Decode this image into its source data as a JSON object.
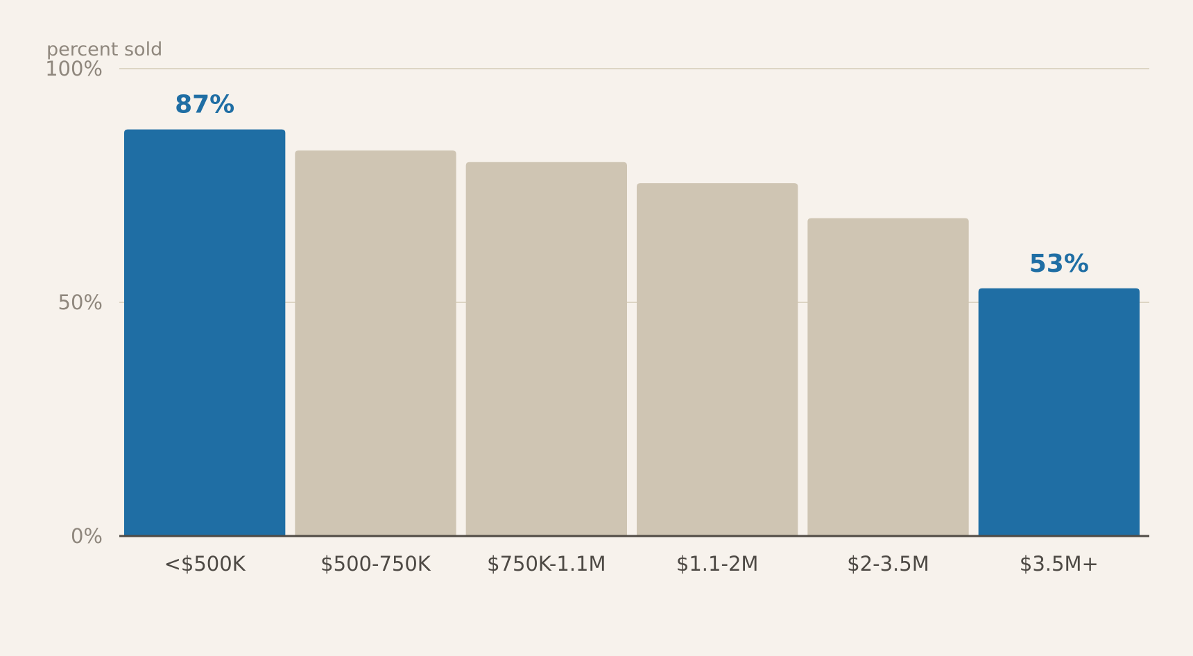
{
  "chart_data": {
    "type": "bar",
    "ylabel": "percent sold",
    "xlabel": "",
    "title": "",
    "ylim": [
      0,
      100
    ],
    "yticks": [
      {
        "value": 0,
        "label": "0%"
      },
      {
        "value": 50,
        "label": "50%"
      },
      {
        "value": 100,
        "label": "100%"
      }
    ],
    "categories": [
      "<$500K",
      "$500-750K",
      "$750K-1.1M",
      "$1.1-2M",
      "$2-3.5M",
      "$3.5M+"
    ],
    "values": [
      87,
      82.5,
      80,
      75.5,
      68,
      53
    ],
    "highlighted": [
      0,
      5
    ],
    "data_labels": [
      {
        "index": 0,
        "text": "87%"
      },
      {
        "index": 5,
        "text": "53%"
      }
    ],
    "grid": true,
    "colors": {
      "highlight": "#1f6ea4",
      "base": "#cfc5b3",
      "gridline": "#ddd5c4",
      "axis": "#4f4a44",
      "background": "#f7f2ec"
    }
  }
}
